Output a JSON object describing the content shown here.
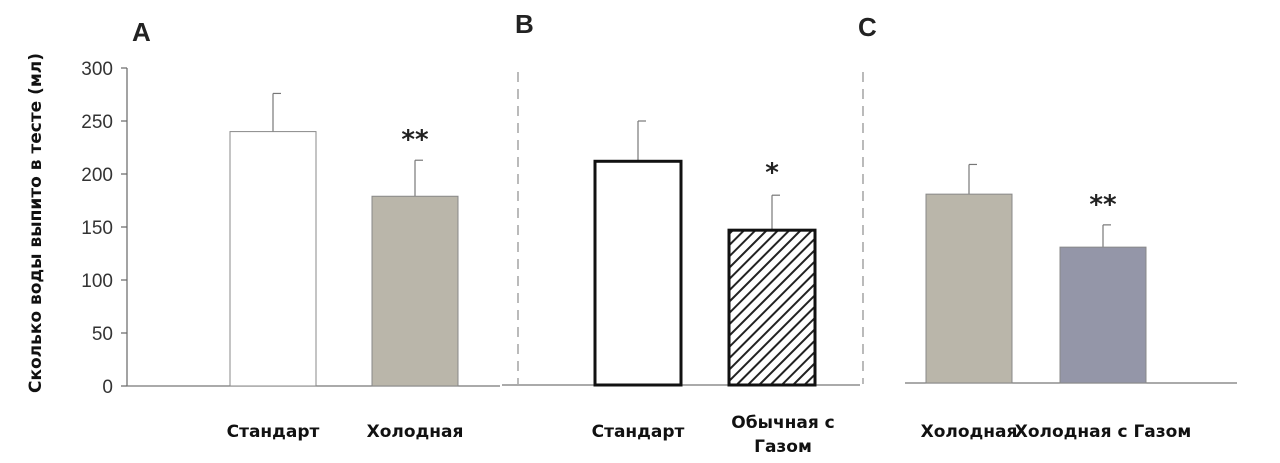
{
  "chart_data": {
    "type": "bar",
    "ylabel": "Сколько воды выпито в тесте (мл)",
    "ylim": [
      0,
      300
    ],
    "yticks": [
      0,
      50,
      100,
      150,
      200,
      250,
      300
    ],
    "grid": false,
    "panels": [
      {
        "letter": "A",
        "bars": [
          {
            "category": "Стандарт",
            "value": 240,
            "error": 36,
            "color": "#ffffff",
            "pattern": "none",
            "significance": ""
          },
          {
            "category": "Холодная",
            "value": 179,
            "error": 34,
            "color": "#bab6aa",
            "pattern": "none",
            "significance": "**"
          }
        ]
      },
      {
        "letter": "B",
        "bars": [
          {
            "category": "Стандарт",
            "value": 212,
            "error": 38,
            "color": "#ffffff",
            "pattern": "none",
            "significance": ""
          },
          {
            "category": "Обычная с Газом",
            "category_lines": [
              "Обычная с",
              "Газом"
            ],
            "value": 147,
            "error": 33,
            "color": "#ffffff",
            "pattern": "diagonal-hatch",
            "significance": "*"
          }
        ]
      },
      {
        "letter": "C",
        "bars": [
          {
            "category": "Холодная",
            "value": 181,
            "error": 28,
            "color": "#bab6aa",
            "pattern": "none",
            "significance": ""
          },
          {
            "category": "Холодная с Газом",
            "value": 131,
            "error": 21,
            "color": "#9496a8",
            "pattern": "none",
            "significance": "**"
          }
        ]
      }
    ]
  }
}
